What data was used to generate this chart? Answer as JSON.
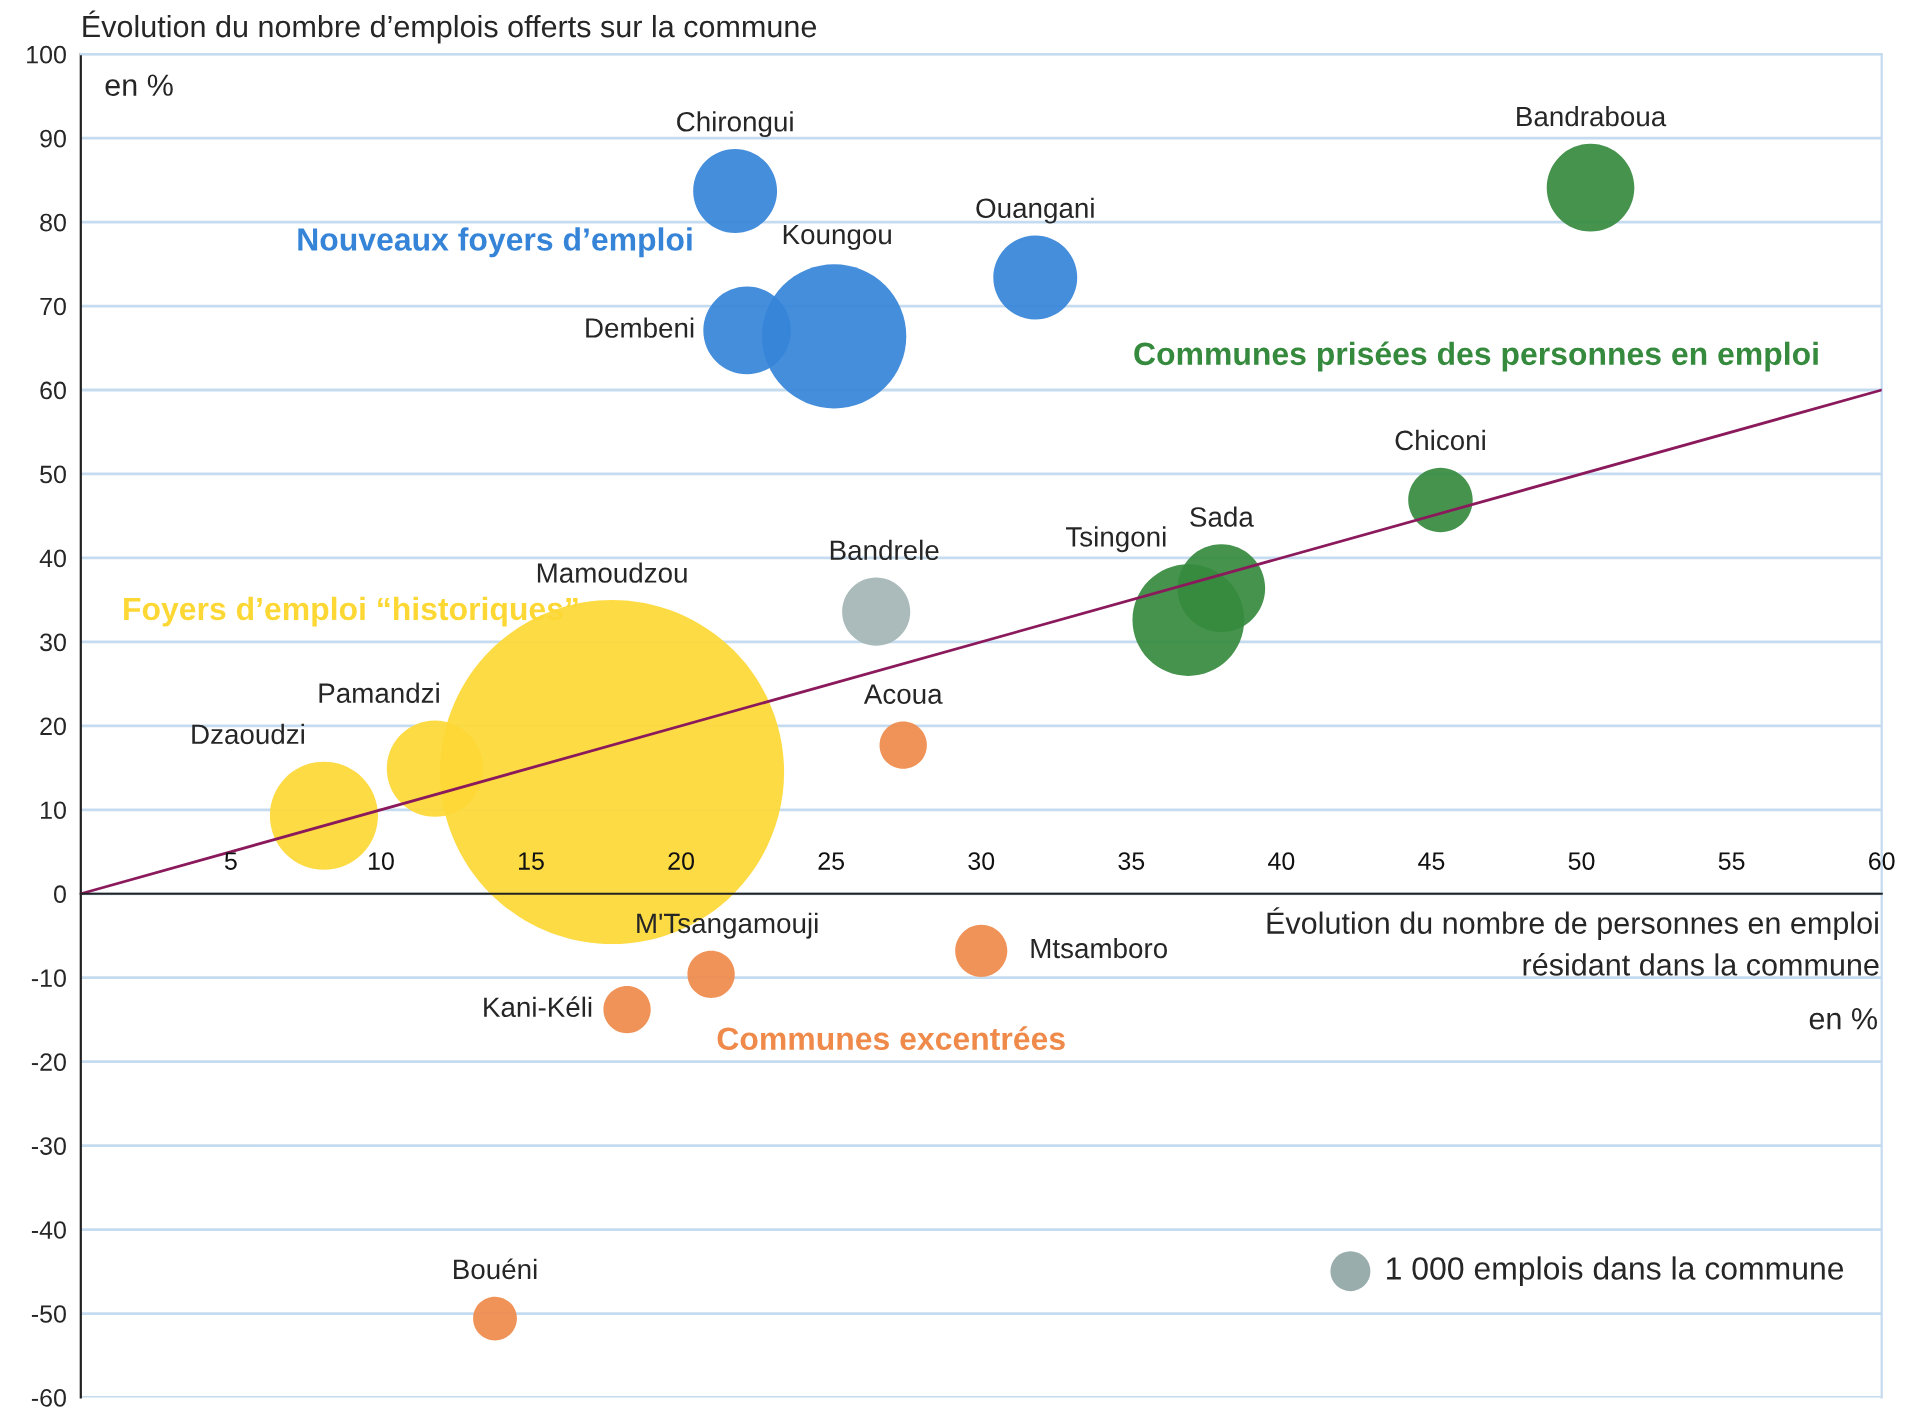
{
  "chart_data": {
    "type": "bubble",
    "ylabel": "Évolution du nombre d’emplois offerts sur la commune",
    "xlabel": "Évolution du nombre de personnes en emploi\nrésidant dans la commune",
    "xlim": [
      0,
      60
    ],
    "xticks": [
      5,
      10,
      15,
      20,
      25,
      30,
      35,
      40,
      45,
      50,
      55,
      60
    ],
    "ylim": [
      -60,
      100
    ],
    "yticks": [
      -60,
      -50,
      -40,
      -30,
      -20,
      -10,
      0,
      10,
      20,
      30,
      40,
      50,
      60,
      70,
      80,
      90,
      100
    ],
    "grid": "y",
    "size_legend": [
      {
        "value": 1000,
        "label": "1 000 emplois dans la commune"
      }
    ],
    "series": [
      {
        "name": "Nouveaux foyers d’emploi",
        "color": "#3584d8",
        "x": [
          21.8,
          22.2,
          25.1,
          31.8
        ],
        "values": [
          83.7,
          67.1,
          66.4,
          73.4
        ],
        "sizes": [
          4400,
          4800,
          13000,
          4400
        ]
      },
      {
        "name": "Communes prisées des personnes en emploi",
        "color": "#358a3e",
        "x": [
          50.3,
          45.3,
          38.0,
          36.9
        ],
        "values": [
          84.1,
          46.9,
          36.4,
          32.6
        ],
        "sizes": [
          4800,
          2600,
          4800,
          7800
        ]
      },
      {
        "name": "Foyers d’emploi “historiques”",
        "color": "#fdd835",
        "x": [
          17.7,
          11.8,
          8.1
        ],
        "values": [
          14.5,
          14.9,
          9.3
        ],
        "sizes": [
          74000,
          5800,
          7300
        ]
      },
      {
        "name": "Communes excentrées",
        "color": "#ef8a4a",
        "x": [
          27.4,
          21.0,
          30.0,
          18.2,
          13.8
        ],
        "values": [
          17.7,
          -9.6,
          -6.8,
          -13.8,
          -50.6
        ],
        "sizes": [
          1400,
          1400,
          1700,
          1400,
          1200
        ]
      },
      {
        "color": "#a4b5b5",
        "x": [
          26.5
        ],
        "values": [
          33.6
        ],
        "sizes": [
          2900
        ]
      },
      {
        "type": "line",
        "color": "#8b1a5c",
        "x": [
          0,
          60
        ],
        "values": [
          0,
          60
        ]
      }
    ],
    "annotations": [
      "en %",
      "en %",
      {
        "text": "Chirongui",
        "x": 21.8,
        "y": 83.7
      },
      {
        "text": "Dembeni",
        "x": 22.2,
        "y": 67.1
      },
      "Koungou",
      {
        "text": "Ouangani",
        "x": 31.8,
        "y": 73.4
      },
      {
        "text": "Bandraboua",
        "x": 50.3,
        "y": 84.1
      },
      {
        "text": "Chiconi",
        "x": 45.3,
        "y": 46.9
      },
      {
        "text": "Sada",
        "x": 38.0,
        "y": 36.4
      },
      {
        "text": "Tsingoni",
        "x": 36.9,
        "y": 32.6
      },
      {
        "text": "Bandrele",
        "x": 26.5,
        "y": 33.6
      },
      "Mamoudzou",
      {
        "text": "Pamandzi",
        "x": 11.8,
        "y": 14.9
      },
      {
        "text": "Dzaoudzi",
        "x": 8.1,
        "y": 9.3
      },
      {
        "text": "Acoua",
        "x": 27.4,
        "y": 17.7
      },
      {
        "text": "M'Tsangamouji",
        "x": 21.0,
        "y": -9.6
      },
      {
        "text": "Mtsamboro",
        "x": 30.0,
        "y": -6.8
      },
      {
        "text": "Kani-Kéli",
        "x": 18.2,
        "y": -13.8
      },
      {
        "text": "Bouéni",
        "x": 13.8,
        "y": -50.6
      }
    ]
  }
}
